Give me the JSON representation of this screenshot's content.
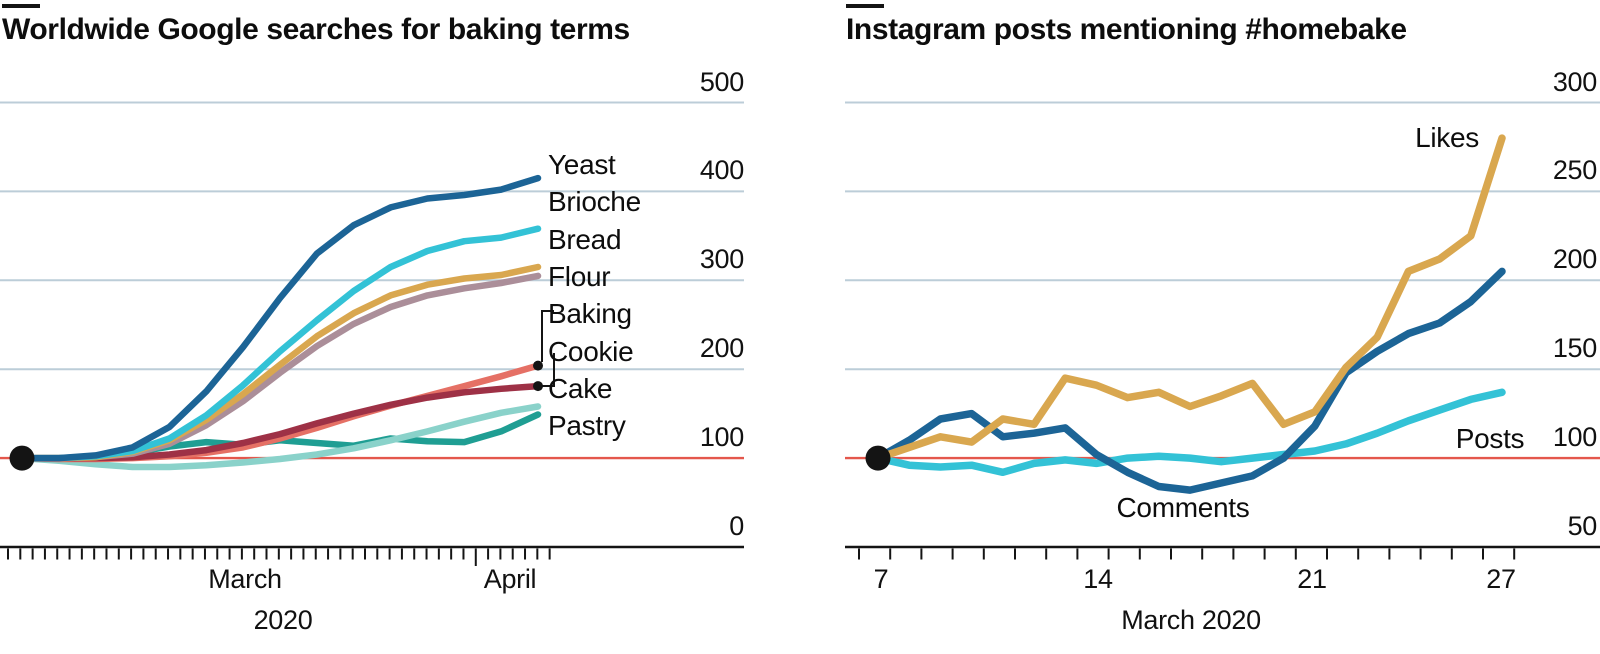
{
  "page": {
    "background": "#ffffff",
    "accent_bar_color": "#141414"
  },
  "style": {
    "grid_color": "#bccdd8",
    "baseline_color": "#e4574c",
    "axis_color": "#141414",
    "text_color": "#0d0d0d",
    "dot_color": "#141414"
  },
  "chart_data": [
    {
      "type": "line",
      "title": "Worldwide Google searches for baking terms",
      "baseline": 100,
      "ylim": [
        0,
        500
      ],
      "y_ticks": [
        500,
        400,
        300,
        200,
        100,
        0
      ],
      "x_tick_labels": [
        "March",
        "April"
      ],
      "x_axis_label": "2020",
      "grid": true,
      "legend_position": "right",
      "legend_order": [
        "Yeast",
        "Brioche",
        "Bread",
        "Flour",
        "Baking",
        "Cookie",
        "Cake",
        "Pastry"
      ],
      "end_dots": [
        "Baking",
        "Cookie"
      ],
      "series": [
        {
          "name": "Pastry",
          "color": "#1f9e93",
          "values": [
            100,
            98,
            101,
            106,
            113,
            118,
            115,
            120,
            117,
            114,
            122,
            119,
            118,
            130,
            149
          ]
        },
        {
          "name": "Cake",
          "color": "#8ad2ca",
          "values": [
            100,
            97,
            93,
            90,
            90,
            92,
            95,
            99,
            104,
            111,
            120,
            130,
            141,
            151,
            158
          ]
        },
        {
          "name": "Baking",
          "color": "#e57065",
          "values": [
            100,
            99,
            99,
            100,
            102,
            106,
            112,
            122,
            134,
            147,
            159,
            170,
            181,
            192,
            204
          ]
        },
        {
          "name": "Cookie",
          "color": "#9e3146",
          "values": [
            100,
            100,
            100,
            101,
            104,
            109,
            117,
            127,
            139,
            150,
            160,
            168,
            174,
            178,
            181
          ]
        },
        {
          "name": "Flour",
          "color": "#ab8e99",
          "values": [
            100,
            100,
            101,
            105,
            116,
            137,
            164,
            196,
            226,
            251,
            270,
            283,
            291,
            297,
            305
          ]
        },
        {
          "name": "Bread",
          "color": "#d9a74f",
          "values": [
            100,
            100,
            101,
            107,
            120,
            143,
            172,
            205,
            237,
            263,
            283,
            295,
            302,
            306,
            315
          ]
        },
        {
          "name": "Brioche",
          "color": "#33c2d6",
          "values": [
            100,
            100,
            102,
            108,
            122,
            148,
            182,
            220,
            255,
            288,
            315,
            333,
            344,
            348,
            358
          ]
        },
        {
          "name": "Yeast",
          "color": "#1c6496",
          "values": [
            100,
            100,
            103,
            112,
            135,
            175,
            225,
            280,
            330,
            362,
            382,
            392,
            396,
            402,
            415
          ]
        }
      ]
    },
    {
      "type": "line",
      "title": "Instagram posts mentioning #homebake",
      "baseline": 100,
      "ylim": [
        50,
        300
      ],
      "y_ticks": [
        300,
        250,
        200,
        150,
        100,
        50
      ],
      "x_days": [
        7,
        8,
        9,
        10,
        11,
        12,
        13,
        14,
        15,
        16,
        17,
        18,
        19,
        20,
        21,
        22,
        23,
        24,
        25,
        26,
        27
      ],
      "x_tick_labels": [
        "7",
        "14",
        "21",
        "27"
      ],
      "x_axis_label": "March 2020",
      "grid": true,
      "annotated_series_labels": [
        "Likes",
        "Comments",
        "Posts"
      ],
      "series": [
        {
          "name": "Posts",
          "color": "#33c2d6",
          "values": [
            100,
            96,
            95,
            96,
            92,
            97,
            99,
            97,
            100,
            101,
            100,
            98,
            100,
            102,
            104,
            108,
            114,
            121,
            127,
            133,
            137
          ]
        },
        {
          "name": "Comments",
          "color": "#1c6496",
          "values": [
            100,
            110,
            122,
            125,
            112,
            114,
            117,
            102,
            92,
            84,
            82,
            86,
            90,
            100,
            118,
            148,
            160,
            170,
            176,
            188,
            205
          ]
        },
        {
          "name": "Likes",
          "color": "#d9a74f",
          "values": [
            100,
            106,
            112,
            109,
            122,
            119,
            145,
            141,
            134,
            137,
            129,
            135,
            142,
            119,
            126,
            151,
            168,
            205,
            212,
            225,
            280
          ]
        }
      ]
    }
  ]
}
